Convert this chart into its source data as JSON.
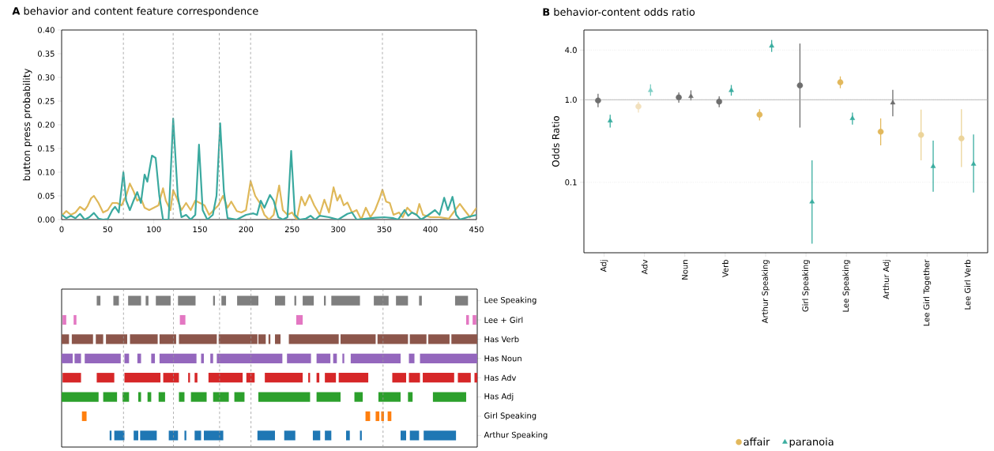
{
  "chart_data": [
    {
      "type": "line",
      "title": "**A** behavior and content feature correspondence",
      "ylabel": "button press probability",
      "xlim": [
        0,
        450
      ],
      "ylim": [
        0,
        0.4
      ],
      "xticks": [
        0,
        50,
        100,
        150,
        200,
        250,
        300,
        350,
        400,
        450
      ],
      "yticks": [
        {
          "value": 0,
          "label": "0.00"
        },
        {
          "value": 0.05,
          "label": "0.05"
        },
        {
          "value": 0.1,
          "label": "0.10"
        },
        {
          "value": 0.15,
          "label": "0.15"
        },
        {
          "value": 0.2,
          "label": "0.20"
        },
        {
          "value": 0.25,
          "label": "0.25"
        },
        {
          "value": 0.3,
          "label": "0.30"
        },
        {
          "value": 0.35,
          "label": "0.35"
        },
        {
          "value": 0.4,
          "label": "0.40"
        }
      ],
      "ref_lines": [
        {
          "axis": "x",
          "value": 67,
          "color": "#999999",
          "line_style": "dashed"
        },
        {
          "axis": "x",
          "value": 121,
          "color": "#999999",
          "line_style": "dashed"
        },
        {
          "axis": "x",
          "value": 171,
          "color": "#999999",
          "line_style": "dashed"
        },
        {
          "axis": "x",
          "value": 205,
          "color": "#999999",
          "line_style": "dashed"
        },
        {
          "axis": "x",
          "value": 348,
          "color": "#999999",
          "line_style": "dashed"
        }
      ],
      "series": [
        {
          "color": "#dfb859",
          "x": [
            0,
            5,
            10,
            15,
            20,
            25,
            28,
            32,
            35,
            40,
            45,
            50,
            55,
            60,
            65,
            70,
            74,
            78,
            82,
            86,
            90,
            95,
            100,
            105,
            110,
            113,
            118,
            121,
            125,
            130,
            135,
            140,
            145,
            150,
            155,
            160,
            165,
            170,
            175,
            180,
            184,
            190,
            195,
            200,
            205,
            210,
            215,
            220,
            225,
            230,
            236,
            240,
            245,
            250,
            255,
            260,
            264,
            269,
            274,
            280,
            285,
            290,
            295,
            299,
            302,
            306,
            310,
            315,
            320,
            325,
            330,
            335,
            340,
            345,
            348,
            352,
            356,
            360,
            366,
            370,
            375,
            380,
            385,
            388,
            392,
            400,
            410,
            420,
            425,
            432,
            437,
            443,
            450
          ],
          "values": [
            0.008,
            0.018,
            0.01,
            0.015,
            0.027,
            0.02,
            0.028,
            0.045,
            0.05,
            0.035,
            0.015,
            0.02,
            0.035,
            0.035,
            0.03,
            0.05,
            0.076,
            0.06,
            0.04,
            0.045,
            0.025,
            0.02,
            0.025,
            0.03,
            0.066,
            0.04,
            0.02,
            0.062,
            0.045,
            0.02,
            0.035,
            0.02,
            0.04,
            0.035,
            0.03,
            0.01,
            0.02,
            0.03,
            0.05,
            0.025,
            0.038,
            0.018,
            0.015,
            0.02,
            0.081,
            0.05,
            0.035,
            0.01,
            0.0,
            0.01,
            0.072,
            0.02,
            0.01,
            0.015,
            0.0,
            0.048,
            0.03,
            0.052,
            0.03,
            0.01,
            0.042,
            0.015,
            0.068,
            0.04,
            0.052,
            0.03,
            0.036,
            0.015,
            0.02,
            0.0,
            0.025,
            0.005,
            0.02,
            0.045,
            0.063,
            0.038,
            0.035,
            0.01,
            0.015,
            0.005,
            0.025,
            0.015,
            0.01,
            0.033,
            0.01,
            0.005,
            0.005,
            0.002,
            0.015,
            0.033,
            0.02,
            0.005,
            0.025
          ]
        },
        {
          "color": "#3aa99f",
          "x": [
            0,
            5,
            10,
            15,
            20,
            25,
            30,
            35,
            40,
            45,
            50,
            55,
            58,
            62,
            67,
            70,
            74,
            78,
            82,
            86,
            90,
            93,
            98,
            102,
            106,
            110,
            116,
            121,
            126,
            130,
            135,
            140,
            145,
            149,
            153,
            158,
            164,
            168,
            172,
            176,
            180,
            190,
            200,
            208,
            212,
            216,
            220,
            226,
            230,
            235,
            240,
            245,
            249,
            253,
            258,
            265,
            270,
            275,
            280,
            290,
            300,
            310,
            315,
            320,
            330,
            340,
            350,
            360,
            365,
            372,
            376,
            380,
            385,
            390,
            398,
            405,
            410,
            415,
            419,
            424,
            428,
            432,
            440,
            450
          ],
          "values": [
            0.01,
            0.003,
            0.008,
            0.003,
            0.012,
            0.0,
            0.005,
            0.014,
            0.002,
            0.0,
            0.001,
            0.02,
            0.027,
            0.015,
            0.1,
            0.04,
            0.02,
            0.04,
            0.058,
            0.035,
            0.095,
            0.08,
            0.135,
            0.13,
            0.05,
            0.0,
            0.0,
            0.213,
            0.05,
            0.005,
            0.01,
            0.0,
            0.01,
            0.158,
            0.02,
            0.0,
            0.01,
            0.05,
            0.203,
            0.06,
            0.003,
            0.0,
            0.01,
            0.013,
            0.01,
            0.04,
            0.025,
            0.052,
            0.04,
            0.005,
            0.0,
            0.005,
            0.145,
            0.01,
            0.0,
            0.002,
            0.008,
            0.0,
            0.008,
            0.005,
            0.0,
            0.012,
            0.015,
            0.0,
            0.002,
            0.004,
            0.005,
            0.003,
            0.0,
            0.02,
            0.008,
            0.015,
            0.01,
            0.0,
            0.01,
            0.02,
            0.01,
            0.046,
            0.02,
            0.048,
            0.01,
            0.0,
            0.005,
            0.01
          ]
        }
      ]
    },
    {
      "type": "bar",
      "orientation": "horizontal",
      "xlim": [
        0,
        450
      ],
      "tick_labels": "y",
      "categories": [
        "Lee Speaking",
        "Lee + Girl",
        "Has Verb",
        "Has Noun",
        "Has Adv",
        "Has Adj",
        "Girl Speaking",
        "Arthur Speaking"
      ],
      "ref_lines": [
        {
          "axis": "x",
          "value": 67,
          "color": "#999999",
          "line_style": "dashed"
        },
        {
          "axis": "x",
          "value": 121,
          "color": "#999999",
          "line_style": "dashed"
        },
        {
          "axis": "x",
          "value": 171,
          "color": "#999999",
          "line_style": "dashed"
        },
        {
          "axis": "x",
          "value": 205,
          "color": "#999999",
          "line_style": "dashed"
        },
        {
          "axis": "x",
          "value": 348,
          "color": "#999999",
          "line_style": "dashed"
        }
      ],
      "series": [
        {
          "colors": [
            "#7f7f7f",
            "#e377c2",
            "#8c564b",
            "#9467bd",
            "#d62728",
            "#2ca02c",
            "#ff7f0e",
            "#1f77b4"
          ],
          "base": [
            38,
            1,
            0,
            0,
            1,
            0,
            22,
            52
          ],
          "values": [
            4,
            4,
            8,
            12,
            20,
            40,
            5,
            2
          ]
        },
        {
          "colors": [
            "#7f7f7f",
            "#e377c2",
            "#8c564b",
            "#9467bd",
            "#d62728",
            "#2ca02c",
            "#ff7f0e",
            "#1f77b4"
          ],
          "base": [
            56,
            13,
            11,
            14,
            38,
            45,
            329,
            57
          ],
          "values": [
            6,
            3,
            23,
            7,
            19,
            15,
            5,
            11
          ]
        },
        {
          "colors": [
            "#7f7f7f",
            "#e377c2",
            "#8c564b",
            "#9467bd",
            "#d62728",
            "#2ca02c",
            "#ff7f0e",
            "#1f77b4"
          ],
          "base": [
            72,
            128,
            37,
            25,
            68,
            66,
            340,
            78
          ],
          "values": [
            14,
            6,
            8,
            39,
            39,
            7,
            4,
            5
          ]
        },
        {
          "colors": [
            "#7f7f7f",
            "#e377c2",
            "#8c564b",
            "#9467bd",
            "#d62728",
            "#2ca02c",
            "#ff7f0e",
            "#1f77b4"
          ],
          "base": [
            91,
            254,
            48,
            68,
            110,
            83,
            346,
            85
          ],
          "values": [
            3,
            7,
            23,
            5,
            17,
            3,
            3,
            18
          ]
        },
        {
          "colors": [
            "#7f7f7f",
            "#e377c2",
            "#8c564b",
            "#9467bd",
            "#d62728",
            "#2ca02c",
            "#ff7f0e",
            "#1f77b4"
          ],
          "base": [
            102,
            438,
            74,
            82,
            137,
            93,
            353,
            116
          ],
          "values": [
            16,
            3,
            30,
            4,
            2,
            4,
            4,
            10
          ]
        },
        {
          "colors": [
            "#7f7f7f",
            "#e377c2",
            "#8c564b",
            "#9467bd",
            "#d62728",
            "#2ca02c",
            null,
            "#1f77b4"
          ],
          "base": [
            126,
            445,
            106,
            97,
            144,
            105,
            null,
            133
          ],
          "values": [
            19,
            4,
            18,
            4,
            3,
            7,
            null,
            2
          ]
        },
        {
          "colors": [
            "#7f7f7f",
            null,
            "#8c564b",
            "#9467bd",
            "#d62728",
            "#2ca02c",
            null,
            "#1f77b4"
          ],
          "base": [
            164,
            null,
            127,
            106,
            159,
            127,
            null,
            144
          ],
          "values": [
            2,
            null,
            41,
            40,
            37,
            6,
            null,
            7
          ]
        },
        {
          "colors": [
            "#7f7f7f",
            null,
            "#8c564b",
            "#9467bd",
            "#d62728",
            "#2ca02c",
            null,
            "#1f77b4"
          ],
          "base": [
            173,
            null,
            170,
            151,
            200,
            140,
            null,
            154
          ],
          "values": [
            5,
            null,
            42,
            3,
            9,
            17,
            null,
            21
          ]
        },
        {
          "colors": [
            "#7f7f7f",
            null,
            "#8c564b",
            "#9467bd",
            "#d62728",
            "#2ca02c",
            null,
            "#1f77b4"
          ],
          "base": [
            190,
            null,
            213,
            161,
            220,
            164,
            null,
            212
          ],
          "values": [
            23,
            null,
            8,
            3,
            41,
            17,
            null,
            19
          ]
        },
        {
          "colors": [
            "#7f7f7f",
            null,
            "#8c564b",
            "#9467bd",
            "#d62728",
            "#2ca02c",
            null,
            "#1f77b4"
          ],
          "base": [
            231,
            null,
            224,
            168,
            267,
            187,
            null,
            241
          ],
          "values": [
            11,
            null,
            2,
            71,
            2,
            11,
            null,
            12
          ]
        },
        {
          "colors": [
            "#7f7f7f",
            null,
            "#8c564b",
            "#9467bd",
            "#d62728",
            "#2ca02c",
            null,
            "#1f77b4"
          ],
          "base": [
            252,
            null,
            231,
            244,
            276,
            213,
            null,
            272
          ],
          "values": [
            2,
            null,
            6,
            26,
            3,
            56,
            null,
            8
          ]
        },
        {
          "colors": [
            "#7f7f7f",
            null,
            "#8c564b",
            "#9467bd",
            "#d62728",
            "#2ca02c",
            null,
            "#1f77b4"
          ],
          "base": [
            261,
            null,
            246,
            276,
            285,
            276,
            null,
            285
          ],
          "values": [
            12,
            null,
            54,
            15,
            12,
            26,
            null,
            7
          ]
        },
        {
          "colors": [
            "#7f7f7f",
            null,
            "#8c564b",
            "#9467bd",
            "#d62728",
            "#2ca02c",
            null,
            "#1f77b4"
          ],
          "base": [
            284,
            null,
            302,
            294,
            300,
            317,
            null,
            308
          ],
          "values": [
            2,
            null,
            38,
            4,
            32,
            9,
            null,
            4
          ]
        },
        {
          "colors": [
            "#7f7f7f",
            null,
            "#8c564b",
            "#9467bd",
            "#d62728",
            "#2ca02c",
            null,
            "#1f77b4"
          ],
          "base": [
            292,
            null,
            342,
            304,
            358,
            343,
            null,
            323
          ],
          "values": [
            31,
            null,
            33,
            2,
            15,
            24,
            null,
            2
          ]
        },
        {
          "colors": [
            "#7f7f7f",
            null,
            "#8c564b",
            "#9467bd",
            "#d62728",
            "#2ca02c",
            null,
            "#1f77b4"
          ],
          "base": [
            338,
            null,
            377,
            313,
            376,
            375,
            null,
            367
          ],
          "values": [
            16,
            null,
            18,
            54,
            12,
            5,
            null,
            6
          ]
        },
        {
          "colors": [
            "#7f7f7f",
            null,
            "#8c564b",
            "#9467bd",
            "#d62728",
            "#2ca02c",
            null,
            "#1f77b4"
          ],
          "base": [
            362,
            null,
            397,
            376,
            391,
            402,
            null,
            377
          ],
          "values": [
            13,
            null,
            23,
            6,
            34,
            36,
            null,
            10
          ]
        },
        {
          "colors": [
            "#7f7f7f",
            null,
            "#8c564b",
            "#9467bd",
            "#d62728",
            null,
            null,
            "#1f77b4"
          ],
          "base": [
            387,
            null,
            422,
            388,
            429,
            null,
            null,
            392
          ],
          "values": [
            3,
            null,
            28,
            62,
            14,
            null,
            null,
            35
          ]
        },
        {
          "colors": [
            "#7f7f7f",
            null,
            null,
            null,
            "#d62728",
            null,
            null,
            null
          ],
          "base": [
            426,
            null,
            null,
            null,
            447,
            null,
            null,
            null
          ],
          "values": [
            14,
            null,
            null,
            null,
            3,
            null,
            null,
            null
          ]
        }
      ]
    },
    {
      "type": "scatter",
      "title": "**B** behavior-content odds ratio",
      "ylabel": "Odds Ratio",
      "log": "y",
      "grid": "y",
      "legend": "bottom",
      "categories": [
        "Adj",
        "Adv",
        "Noun",
        "Verb",
        "Arthur Speaking",
        "Girl Speaking",
        "Lee Speaking",
        "Arthur Adj",
        "Lee Girl Together",
        "Lee Girl Verb"
      ],
      "ylim": [
        0.014,
        7
      ],
      "yticks": [
        {
          "value": 0.1,
          "label": "0.1"
        },
        {
          "value": 1,
          "label": "1.0"
        },
        {
          "value": 4,
          "label": "4.0"
        }
      ],
      "ref_lines": [
        {
          "axis": "y",
          "value": 1,
          "color": "#aaaaaa"
        }
      ],
      "series": [
        {
          "name": "affair",
          "color": "#e2b85c",
          "marker": "circle",
          "colors": [
            "#6e6e6e",
            "#f2e0bd",
            "#6e6e6e",
            "#6e6e6e",
            "#e2b85c",
            "#6e6e6e",
            "#e2b85c",
            "#e2b85c",
            "#ecd49a",
            "#ecd49a"
          ],
          "values": [
            0.98,
            0.83,
            1.07,
            0.95,
            0.66,
            1.49,
            1.63,
            0.41,
            0.375,
            0.34
          ],
          "errors": [
            [
              0.81,
              1.18
            ],
            [
              0.7,
              0.95
            ],
            [
              0.92,
              1.23
            ],
            [
              0.81,
              1.1
            ],
            [
              0.56,
              0.77
            ],
            [
              0.46,
              4.8
            ],
            [
              1.38,
              1.92
            ],
            [
              0.28,
              0.595
            ],
            [
              0.184,
              0.76
            ],
            [
              0.153,
              0.77
            ]
          ]
        },
        {
          "name": "paranoia",
          "color": "#3aada0",
          "marker": "triangle",
          "colors": [
            "#3aada0",
            "#7fcfc5",
            "#6e6e6e",
            "#3aada0",
            "#3aada0",
            "#3aada0",
            "#3aada0",
            "#6e6e6e",
            "#3aada0",
            "#3aada0"
          ],
          "values": [
            0.556,
            1.3,
            1.1,
            1.3,
            4.49,
            0.058,
            0.595,
            0.92,
            0.156,
            0.166
          ],
          "errors": [
            [
              0.46,
              0.66
            ],
            [
              1.12,
              1.54
            ],
            [
              0.98,
              1.3
            ],
            [
              1.12,
              1.51
            ],
            [
              3.8,
              5.3
            ],
            [
              0.018,
              0.184
            ],
            [
              0.5,
              0.7
            ],
            [
              0.63,
              1.32
            ],
            [
              0.077,
              0.32
            ],
            [
              0.075,
              0.38
            ]
          ]
        }
      ]
    }
  ]
}
